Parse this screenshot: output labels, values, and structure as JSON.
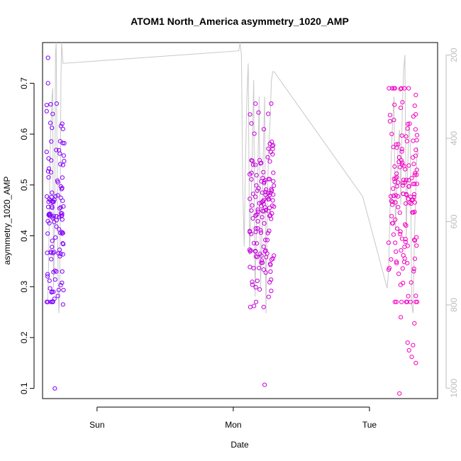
{
  "chart_data": {
    "type": "scatter",
    "title": "ATOM1 North_America asymmetry_1020_AMP",
    "xlabel": "Date",
    "ylabel": "asymmetry_1020_AMP",
    "x_ticks": [
      {
        "label": "Sun",
        "value": 0.5
      },
      {
        "label": "Mon",
        "value": 1.5
      },
      {
        "label": "Tue",
        "value": 2.5
      }
    ],
    "xlim": [
      0.1,
      3.0
    ],
    "ylim": [
      0.08,
      0.78
    ],
    "y_ticks": [
      0.1,
      0.2,
      0.3,
      0.4,
      0.5,
      0.6,
      0.7
    ],
    "y2_ticks": [
      200,
      400,
      600,
      800,
      1000
    ],
    "y2lim": [
      1025,
      170
    ],
    "grid": false,
    "color_low": "#7f00ff",
    "color_high": "#ff00bf",
    "line_color": "#c8c8c8",
    "seed": 20531,
    "clusters": [
      {
        "x_start": 0.13,
        "x_end": 0.26,
        "n": 115,
        "y_center": 0.44,
        "y_spread": 0.1,
        "y_min": 0.27,
        "y_max": 0.66
      },
      {
        "x_start": 1.62,
        "x_end": 1.8,
        "n": 145,
        "y_center": 0.45,
        "y_spread": 0.09,
        "y_min": 0.26,
        "y_max": 0.66
      },
      {
        "x_start": 2.64,
        "x_end": 2.85,
        "n": 150,
        "y_center": 0.48,
        "y_spread": 0.12,
        "y_min": 0.27,
        "y_max": 0.69
      }
    ],
    "outliers": [
      {
        "x": 0.14,
        "y": 0.75
      },
      {
        "x": 0.14,
        "y": 0.7
      },
      {
        "x": 0.13,
        "y": 0.657
      },
      {
        "x": 0.13,
        "y": 0.645
      },
      {
        "x": 0.19,
        "y": 0.1
      },
      {
        "x": 0.13,
        "y": 0.565
      },
      {
        "x": 0.18,
        "y": 0.29
      },
      {
        "x": 0.17,
        "y": 0.29
      },
      {
        "x": 0.25,
        "y": 0.265
      },
      {
        "x": 1.73,
        "y": 0.107
      },
      {
        "x": 1.76,
        "y": 0.28
      },
      {
        "x": 2.72,
        "y": 0.09
      },
      {
        "x": 2.84,
        "y": 0.15
      },
      {
        "x": 2.81,
        "y": 0.162
      },
      {
        "x": 2.79,
        "y": 0.175
      },
      {
        "x": 2.82,
        "y": 0.185
      },
      {
        "x": 2.78,
        "y": 0.19
      },
      {
        "x": 2.83,
        "y": 0.228
      },
      {
        "x": 2.85,
        "y": 0.27
      },
      {
        "x": 2.84,
        "y": 0.282
      },
      {
        "x": 2.73,
        "y": 0.24
      }
    ],
    "pressure_line": {
      "x": [
        0.1375,
        0.145,
        0.15,
        0.155,
        0.16,
        0.165,
        0.17,
        0.175,
        0.18,
        0.185,
        0.19,
        0.195,
        0.2,
        0.205,
        0.21,
        0.215,
        0.22,
        0.225,
        0.23,
        0.235,
        0.24,
        0.25,
        1.54,
        1.55,
        1.56,
        1.57,
        1.58,
        1.59,
        1.6,
        1.61,
        1.62,
        1.63,
        1.64,
        1.65,
        1.66,
        1.67,
        1.68,
        1.69,
        1.7,
        1.71,
        1.72,
        1.73,
        1.74,
        1.75,
        1.76,
        1.77,
        1.78,
        1.79,
        1.8,
        2.45,
        2.63,
        2.64,
        2.65,
        2.66,
        2.67,
        2.68,
        2.69,
        2.7,
        2.71,
        2.72,
        2.73,
        2.74,
        2.75,
        2.76,
        2.77,
        2.78,
        2.79,
        2.8,
        2.81,
        2.82,
        2.83,
        2.84,
        2.85,
        2.86
      ],
      "y": [
        800,
        700,
        560,
        450,
        380,
        340,
        300,
        280,
        760,
        700,
        560,
        200,
        120,
        380,
        600,
        760,
        820,
        780,
        560,
        260,
        150,
        220,
        190,
        160,
        200,
        520,
        660,
        450,
        300,
        220,
        680,
        560,
        420,
        260,
        780,
        620,
        480,
        300,
        760,
        640,
        440,
        300,
        820,
        560,
        420,
        360,
        260,
        240,
        240,
        540,
        760,
        720,
        580,
        440,
        360,
        300,
        620,
        520,
        420,
        380,
        560,
        340,
        240,
        200,
        640,
        480,
        360,
        420,
        800,
        820,
        640,
        520,
        420,
        440
      ]
    }
  }
}
